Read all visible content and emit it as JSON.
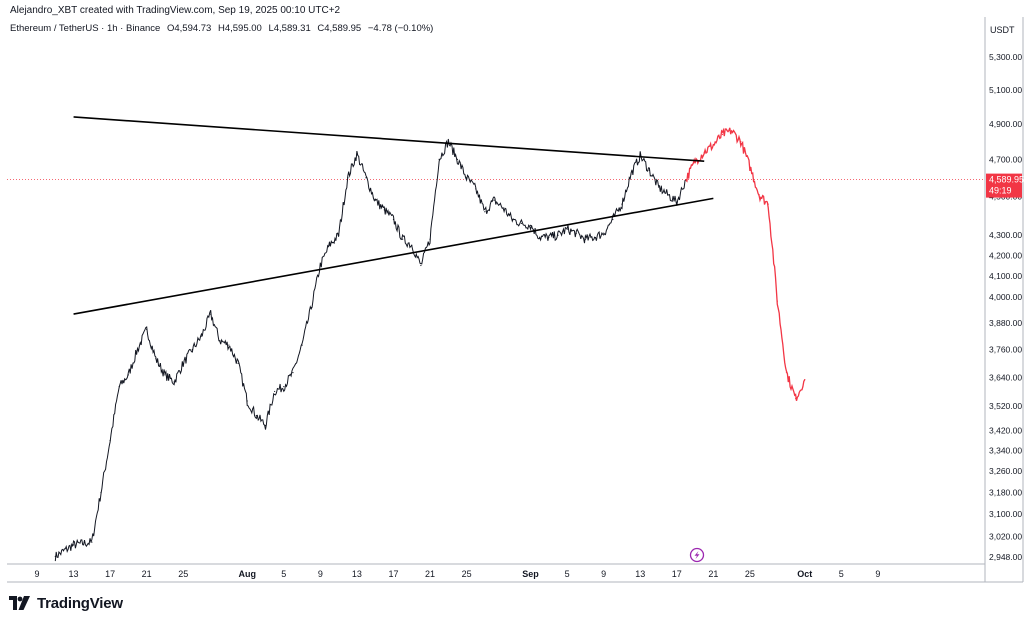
{
  "header": {
    "credit": "Alejandro_XBT created with TradingView.com, Sep 19, 2025 00:10 UTC+2"
  },
  "legend": {
    "symbol": "Ethereum / TetherUS · 1h · Binance",
    "open": "O4,594.73",
    "high": "H4,595.00",
    "low": "L4,589.31",
    "close": "C4,589.95",
    "change": "−4.78 (−0.10%)"
  },
  "currency": "USDT",
  "price_tag": {
    "price": "4,589.95",
    "countdown": "49:19",
    "color": "#f23645"
  },
  "footer": {
    "brand": "TradingView"
  },
  "colors": {
    "candles": "#131722",
    "projection": "#f23645",
    "trendlines": "#000000",
    "marker": "#9c27b0"
  },
  "chart_data": {
    "type": "line",
    "symbol": "ETHUSDT",
    "interval": "1h",
    "y_axis": {
      "labels": [
        "5,300.00",
        "5,100.00",
        "4,900.00",
        "4,700.00",
        "4,500.00",
        "4,300.00",
        "4,200.00",
        "4,100.00",
        "4,000.00",
        "3,880.00",
        "3,760.00",
        "3,640.00",
        "3,520.00",
        "3,420.00",
        "3,340.00",
        "3,260.00",
        "3,180.00",
        "3,100.00",
        "3,020.00",
        "2,948.00"
      ],
      "scale": "log"
    },
    "x_axis": {
      "labels": [
        "9",
        "13",
        "17",
        "21",
        "25",
        "Aug",
        "5",
        "9",
        "13",
        "17",
        "21",
        "25",
        "Sep",
        "5",
        "9",
        "13",
        "17",
        "21",
        "25",
        "Oct",
        "5",
        "9"
      ],
      "start": "Jul 9",
      "end": "Oct 9"
    },
    "series": [
      {
        "kind": "historical",
        "x": [
          "Jul 11",
          "Jul 13",
          "Jul 15",
          "Jul 16",
          "Jul 17",
          "Jul 18",
          "Jul 19",
          "Jul 20",
          "Jul 21",
          "Jul 22",
          "Jul 23",
          "Jul 24",
          "Jul 25",
          "Jul 26",
          "Jul 27",
          "Jul 28",
          "Jul 29",
          "Jul 30",
          "Jul 31",
          "Aug 1",
          "Aug 2",
          "Aug 3",
          "Aug 4",
          "Aug 5",
          "Aug 6",
          "Aug 7",
          "Aug 8",
          "Aug 9",
          "Aug 10",
          "Aug 11",
          "Aug 12",
          "Aug 13",
          "Aug 14",
          "Aug 15",
          "Aug 16",
          "Aug 17",
          "Aug 18",
          "Aug 19",
          "Aug 20",
          "Aug 21",
          "Aug 22",
          "Aug 23",
          "Aug 24",
          "Aug 25",
          "Aug 26",
          "Aug 27",
          "Aug 28",
          "Aug 29",
          "Aug 30",
          "Aug 31",
          "Sep 1",
          "Sep 2",
          "Sep 3",
          "Sep 4",
          "Sep 5",
          "Sep 6",
          "Sep 7",
          "Sep 8",
          "Sep 9",
          "Sep 10",
          "Sep 11",
          "Sep 12",
          "Sep 13",
          "Sep 14",
          "Sep 15",
          "Sep 16",
          "Sep 17",
          "Sep 18"
        ],
        "y": [
          2950,
          2990,
          3000,
          3180,
          3380,
          3600,
          3650,
          3760,
          3850,
          3720,
          3650,
          3620,
          3700,
          3760,
          3820,
          3920,
          3800,
          3780,
          3700,
          3540,
          3480,
          3440,
          3580,
          3600,
          3660,
          3780,
          3950,
          4150,
          4250,
          4300,
          4600,
          4730,
          4600,
          4480,
          4430,
          4380,
          4280,
          4250,
          4150,
          4280,
          4700,
          4800,
          4700,
          4600,
          4540,
          4420,
          4480,
          4440,
          4380,
          4360,
          4350,
          4290,
          4290,
          4300,
          4330,
          4310,
          4280,
          4290,
          4310,
          4380,
          4460,
          4620,
          4720,
          4640,
          4550,
          4510,
          4470,
          4590
        ]
      },
      {
        "kind": "projection",
        "x": [
          "Sep 18",
          "Sep 19",
          "Sep 20",
          "Sep 21",
          "Sep 22",
          "Sep 23",
          "Sep 24",
          "Sep 25",
          "Sep 26",
          "Sep 27",
          "Sep 28",
          "Sep 29",
          "Sep 30",
          "Oct 1"
        ],
        "y": [
          4590,
          4690,
          4740,
          4780,
          4840,
          4860,
          4800,
          4660,
          4510,
          4460,
          3980,
          3660,
          3550,
          3630
        ]
      }
    ],
    "trendlines": [
      {
        "from": [
          "Jul 13",
          "4,940"
        ],
        "to": [
          "Sep 20",
          "4,690"
        ]
      },
      {
        "from": [
          "Jul 13",
          "3,920"
        ],
        "to": [
          "Sep 21",
          "4,490"
        ]
      }
    ],
    "last_price": 4589.95,
    "grid": false
  }
}
